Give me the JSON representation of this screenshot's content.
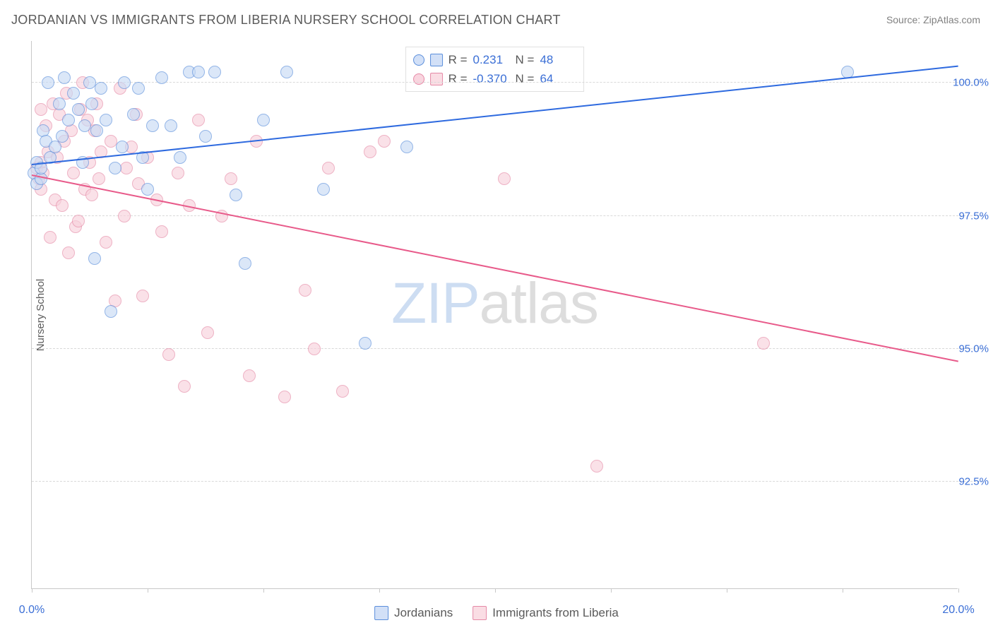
{
  "title": "JORDANIAN VS IMMIGRANTS FROM LIBERIA NURSERY SCHOOL CORRELATION CHART",
  "source": "Source: ZipAtlas.com",
  "y_axis_label": "Nursery School",
  "watermark": {
    "part1": "ZIP",
    "part2": "atlas"
  },
  "chart": {
    "type": "scatter",
    "xlim": [
      0.0,
      20.0
    ],
    "ylim": [
      90.5,
      100.8
    ],
    "x_ticks": [
      0.0,
      2.5,
      5.0,
      7.5,
      10.0,
      12.5,
      15.0,
      17.5,
      20.0
    ],
    "x_tick_labels": {
      "0": "0.0%",
      "20": "20.0%"
    },
    "y_gridlines": [
      92.5,
      95.0,
      97.5,
      100.0
    ],
    "y_tick_labels": [
      "92.5%",
      "95.0%",
      "97.5%",
      "100.0%"
    ],
    "background_color": "#ffffff",
    "grid_color": "#d9d9d9",
    "axis_color": "#c8c8c8",
    "tick_label_color": "#3b6fd6",
    "text_color": "#5a5a5a",
    "marker_radius": 9,
    "marker_opacity": 0.65,
    "series": {
      "jordanians": {
        "label": "Jordanians",
        "fill_color": "#c8dbf5",
        "stroke_color": "#5a8edb",
        "R": "0.231",
        "N": "48",
        "trend": {
          "x1": 0.0,
          "y1": 98.45,
          "x2": 20.0,
          "y2": 100.3,
          "color": "#2e6adf",
          "width": 2
        },
        "points": [
          [
            0.05,
            98.3
          ],
          [
            0.1,
            98.1
          ],
          [
            0.1,
            98.5
          ],
          [
            0.2,
            98.2
          ],
          [
            0.2,
            98.4
          ],
          [
            0.25,
            99.1
          ],
          [
            0.3,
            98.9
          ],
          [
            0.35,
            100.0
          ],
          [
            0.4,
            98.6
          ],
          [
            0.5,
            98.8
          ],
          [
            0.6,
            99.6
          ],
          [
            0.65,
            99.0
          ],
          [
            0.7,
            100.1
          ],
          [
            0.8,
            99.3
          ],
          [
            0.9,
            99.8
          ],
          [
            1.0,
            99.5
          ],
          [
            1.1,
            98.5
          ],
          [
            1.15,
            99.2
          ],
          [
            1.25,
            100.0
          ],
          [
            1.3,
            99.6
          ],
          [
            1.35,
            96.7
          ],
          [
            1.4,
            99.1
          ],
          [
            1.5,
            99.9
          ],
          [
            1.6,
            99.3
          ],
          [
            1.7,
            95.7
          ],
          [
            1.8,
            98.4
          ],
          [
            1.95,
            98.8
          ],
          [
            2.0,
            100.0
          ],
          [
            2.2,
            99.4
          ],
          [
            2.3,
            99.9
          ],
          [
            2.4,
            98.6
          ],
          [
            2.5,
            98.0
          ],
          [
            2.6,
            99.2
          ],
          [
            2.8,
            100.1
          ],
          [
            3.0,
            99.2
          ],
          [
            3.2,
            98.6
          ],
          [
            3.4,
            100.2
          ],
          [
            3.6,
            100.2
          ],
          [
            3.75,
            99.0
          ],
          [
            3.95,
            100.2
          ],
          [
            4.4,
            97.9
          ],
          [
            4.6,
            96.6
          ],
          [
            5.0,
            99.3
          ],
          [
            5.5,
            100.2
          ],
          [
            6.3,
            98.0
          ],
          [
            7.2,
            95.1
          ],
          [
            8.1,
            98.8
          ],
          [
            17.6,
            100.2
          ]
        ]
      },
      "liberia": {
        "label": "Immigrants from Liberia",
        "fill_color": "#f8d2dc",
        "stroke_color": "#e589a6",
        "R": "-0.370",
        "N": "64",
        "trend": {
          "x1": 0.0,
          "y1": 98.25,
          "x2": 20.0,
          "y2": 94.75,
          "color": "#e85a8a",
          "width": 2
        },
        "points": [
          [
            0.1,
            98.4
          ],
          [
            0.15,
            98.2
          ],
          [
            0.2,
            98.5
          ],
          [
            0.2,
            99.5
          ],
          [
            0.2,
            98.0
          ],
          [
            0.25,
            98.3
          ],
          [
            0.3,
            99.2
          ],
          [
            0.35,
            98.7
          ],
          [
            0.4,
            97.1
          ],
          [
            0.45,
            99.6
          ],
          [
            0.5,
            97.8
          ],
          [
            0.55,
            98.6
          ],
          [
            0.6,
            99.4
          ],
          [
            0.65,
            97.7
          ],
          [
            0.7,
            98.9
          ],
          [
            0.75,
            99.8
          ],
          [
            0.8,
            96.8
          ],
          [
            0.85,
            99.1
          ],
          [
            0.9,
            98.3
          ],
          [
            0.95,
            97.3
          ],
          [
            1.0,
            97.4
          ],
          [
            1.05,
            99.5
          ],
          [
            1.1,
            100.0
          ],
          [
            1.15,
            98.0
          ],
          [
            1.2,
            99.3
          ],
          [
            1.25,
            98.5
          ],
          [
            1.3,
            97.9
          ],
          [
            1.35,
            99.1
          ],
          [
            1.4,
            99.6
          ],
          [
            1.45,
            98.2
          ],
          [
            1.5,
            98.7
          ],
          [
            1.6,
            97.0
          ],
          [
            1.7,
            98.9
          ],
          [
            1.8,
            95.9
          ],
          [
            1.9,
            99.9
          ],
          [
            2.0,
            97.5
          ],
          [
            2.05,
            98.4
          ],
          [
            2.15,
            98.8
          ],
          [
            2.25,
            99.4
          ],
          [
            2.3,
            98.1
          ],
          [
            2.4,
            96.0
          ],
          [
            2.5,
            98.6
          ],
          [
            2.7,
            97.8
          ],
          [
            2.8,
            97.2
          ],
          [
            2.95,
            94.9
          ],
          [
            3.15,
            98.3
          ],
          [
            3.3,
            94.3
          ],
          [
            3.4,
            97.7
          ],
          [
            3.6,
            99.3
          ],
          [
            3.8,
            95.3
          ],
          [
            4.1,
            97.5
          ],
          [
            4.3,
            98.2
          ],
          [
            4.7,
            94.5
          ],
          [
            4.85,
            98.9
          ],
          [
            5.45,
            94.1
          ],
          [
            5.9,
            96.1
          ],
          [
            6.1,
            95.0
          ],
          [
            6.4,
            98.4
          ],
          [
            6.7,
            94.2
          ],
          [
            7.3,
            98.7
          ],
          [
            7.6,
            98.9
          ],
          [
            10.2,
            98.2
          ],
          [
            12.2,
            92.8
          ],
          [
            15.8,
            95.1
          ]
        ]
      }
    }
  },
  "stats_box": {
    "R_label": "R =",
    "N_label": "N ="
  }
}
